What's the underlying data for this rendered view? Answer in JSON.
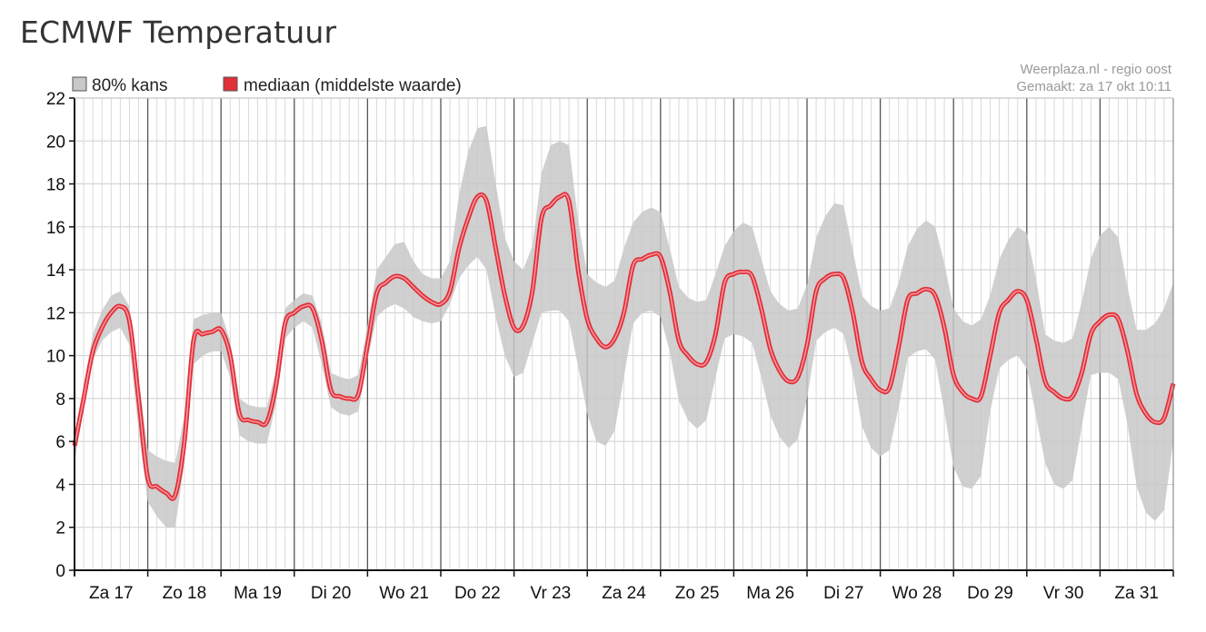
{
  "page": {
    "title": "ECMWF Temperatuur"
  },
  "chart_data": {
    "type": "area",
    "title": "ECMWF Temperatuur",
    "legend": [
      {
        "label": "80% kans",
        "color": "#c8c8c8"
      },
      {
        "label": "mediaan (middelste waarde)",
        "color": "#e0303a"
      }
    ],
    "legend_position": "top-left",
    "source_lines": [
      "Weerplaza.nl - regio oost",
      "Gemaakt: za 17 okt 10:11"
    ],
    "categories": [
      "Za 17",
      "Zo 18",
      "Ma 19",
      "Di 20",
      "Wo 21",
      "Do 22",
      "Vr 23",
      "Za 24",
      "Zo 25",
      "Ma 26",
      "Di 27",
      "Wo 28",
      "Do 29",
      "Vr 30",
      "Za 31"
    ],
    "x_unit": "hours since Za 17 00:00",
    "xlim": [
      0,
      360
    ],
    "ylim": [
      0,
      22
    ],
    "yticks": [
      0,
      2,
      4,
      6,
      8,
      10,
      12,
      14,
      16,
      18,
      20,
      22
    ],
    "grid": true,
    "series": [
      {
        "name": "mediaan (middelste waarde)",
        "x": [
          0,
          3,
          6,
          9,
          12,
          15,
          18,
          21,
          24,
          27,
          30,
          33,
          36,
          39,
          42,
          45,
          48,
          51,
          54,
          57,
          60,
          63,
          66,
          69,
          72,
          75,
          78,
          81,
          84,
          87,
          90,
          93,
          96,
          99,
          102,
          105,
          108,
          111,
          114,
          117,
          120,
          123,
          126,
          129,
          132,
          135,
          138,
          141,
          144,
          147,
          150,
          153,
          156,
          159,
          162,
          165,
          168,
          171,
          174,
          177,
          180,
          183,
          186,
          189,
          192,
          195,
          198,
          201,
          204,
          207,
          210,
          213,
          216,
          219,
          222,
          225,
          228,
          231,
          234,
          237,
          240,
          243,
          246,
          249,
          252,
          255,
          258,
          261,
          264,
          267,
          270,
          273,
          276,
          279,
          282,
          285,
          288,
          291,
          294,
          297,
          300,
          303,
          306,
          309,
          312,
          315,
          318,
          321,
          324,
          327,
          330,
          333,
          336,
          339,
          342,
          345,
          348,
          351,
          354,
          357,
          360
        ],
        "y": [
          5.8,
          8.0,
          10.2,
          11.3,
          12.0,
          12.3,
          11.6,
          8.0,
          4.3,
          3.9,
          3.6,
          3.5,
          6.0,
          10.7,
          11.0,
          11.1,
          11.2,
          10.0,
          7.3,
          7.0,
          6.9,
          6.9,
          8.6,
          11.5,
          12.0,
          12.3,
          12.2,
          10.7,
          8.4,
          8.1,
          8.0,
          8.2,
          10.5,
          12.9,
          13.4,
          13.7,
          13.6,
          13.2,
          12.8,
          12.5,
          12.4,
          13.0,
          15.0,
          16.4,
          17.4,
          17.2,
          15.0,
          12.8,
          11.3,
          11.4,
          13.0,
          16.4,
          17.0,
          17.4,
          17.2,
          14.0,
          11.7,
          10.8,
          10.4,
          10.8,
          12.0,
          14.2,
          14.5,
          14.7,
          14.6,
          13.0,
          10.7,
          10.0,
          9.6,
          9.7,
          11.0,
          13.4,
          13.8,
          13.9,
          13.7,
          12.2,
          10.3,
          9.3,
          8.8,
          9.0,
          10.5,
          13.0,
          13.6,
          13.8,
          13.6,
          12.0,
          9.7,
          8.9,
          8.4,
          8.5,
          10.4,
          12.6,
          12.9,
          13.1,
          12.8,
          11.3,
          9.1,
          8.3,
          8.0,
          8.1,
          10.0,
          12.0,
          12.6,
          13.0,
          12.6,
          10.8,
          8.8,
          8.3,
          8.0,
          8.1,
          9.2,
          11.0,
          11.6,
          11.9,
          11.7,
          10.2,
          8.2,
          7.3,
          6.9,
          7.1,
          8.7
        ]
      },
      {
        "name": "80% kans",
        "x": [
          0,
          3,
          6,
          9,
          12,
          15,
          18,
          21,
          24,
          27,
          30,
          33,
          36,
          39,
          42,
          45,
          48,
          51,
          54,
          57,
          60,
          63,
          66,
          69,
          72,
          75,
          78,
          81,
          84,
          87,
          90,
          93,
          96,
          99,
          102,
          105,
          108,
          111,
          114,
          117,
          120,
          123,
          126,
          129,
          132,
          135,
          138,
          141,
          144,
          147,
          150,
          153,
          156,
          159,
          162,
          165,
          168,
          171,
          174,
          177,
          180,
          183,
          186,
          189,
          192,
          195,
          198,
          201,
          204,
          207,
          210,
          213,
          216,
          219,
          222,
          225,
          228,
          231,
          234,
          237,
          240,
          243,
          246,
          249,
          252,
          255,
          258,
          261,
          264,
          267,
          270,
          273,
          276,
          279,
          282,
          285,
          288,
          291,
          294,
          297,
          300,
          303,
          306,
          309,
          312,
          315,
          318,
          321,
          324,
          327,
          330,
          333,
          336,
          339,
          342,
          345,
          348,
          351,
          354,
          357,
          360
        ],
        "low": [
          5.0,
          7.6,
          9.8,
          10.7,
          11.1,
          11.3,
          10.5,
          6.5,
          3.2,
          2.5,
          2.0,
          2.0,
          5.0,
          9.6,
          10.0,
          10.2,
          10.2,
          9.0,
          6.3,
          6.0,
          5.9,
          5.9,
          7.7,
          10.8,
          11.3,
          11.6,
          11.3,
          9.6,
          7.6,
          7.3,
          7.2,
          7.4,
          9.8,
          11.8,
          12.2,
          12.4,
          12.2,
          11.8,
          11.6,
          11.5,
          11.6,
          12.4,
          13.6,
          14.2,
          14.6,
          14.0,
          11.8,
          10.0,
          9.0,
          9.2,
          10.6,
          12.0,
          12.1,
          12.1,
          11.6,
          9.5,
          7.3,
          6.0,
          5.8,
          6.5,
          9.0,
          11.5,
          12.0,
          12.1,
          11.8,
          10.2,
          7.9,
          7.0,
          6.6,
          7.0,
          9.0,
          10.8,
          11.0,
          10.9,
          10.6,
          9.0,
          7.2,
          6.2,
          5.7,
          6.1,
          8.0,
          10.7,
          11.1,
          11.3,
          11.0,
          9.2,
          6.7,
          5.7,
          5.3,
          5.6,
          7.6,
          9.9,
          10.2,
          10.3,
          9.8,
          7.4,
          4.8,
          3.9,
          3.8,
          4.4,
          7.4,
          9.4,
          9.8,
          10.0,
          9.4,
          7.2,
          5.0,
          4.0,
          3.8,
          4.2,
          6.7,
          9.1,
          9.2,
          9.2,
          8.9,
          6.8,
          3.9,
          2.7,
          2.3,
          2.8,
          6.0
        ]
      },
      {
        "name": "80% kans (boven)",
        "high": [
          5.8,
          8.6,
          11.0,
          12.1,
          12.8,
          13.0,
          12.3,
          9.0,
          5.6,
          5.3,
          5.1,
          5.0,
          7.2,
          11.7,
          11.9,
          12.0,
          12.0,
          10.7,
          8.0,
          7.7,
          7.6,
          7.6,
          9.3,
          12.2,
          12.6,
          12.9,
          12.8,
          11.5,
          9.2,
          9.0,
          8.9,
          9.1,
          11.4,
          14.0,
          14.6,
          15.2,
          15.3,
          14.4,
          13.8,
          13.6,
          13.6,
          14.4,
          17.5,
          19.5,
          20.6,
          20.7,
          18.0,
          15.5,
          14.4,
          14.0,
          15.1,
          18.5,
          19.8,
          20.0,
          19.8,
          16.3,
          13.8,
          13.4,
          13.2,
          13.5,
          15.0,
          16.2,
          16.7,
          16.9,
          16.7,
          15.0,
          13.2,
          12.7,
          12.5,
          12.6,
          13.8,
          15.1,
          15.8,
          16.2,
          16.0,
          14.5,
          13.0,
          12.4,
          12.1,
          12.2,
          13.3,
          15.5,
          16.5,
          17.1,
          17.0,
          14.9,
          12.8,
          12.3,
          12.1,
          12.2,
          13.4,
          15.1,
          15.9,
          16.3,
          16.0,
          14.3,
          12.2,
          11.6,
          11.4,
          11.7,
          12.8,
          14.5,
          15.4,
          16.0,
          15.7,
          13.6,
          11.0,
          10.7,
          10.6,
          10.8,
          12.5,
          14.5,
          15.6,
          16.0,
          15.5,
          13.2,
          11.2,
          11.2,
          11.5,
          12.2,
          13.4
        ]
      }
    ]
  }
}
